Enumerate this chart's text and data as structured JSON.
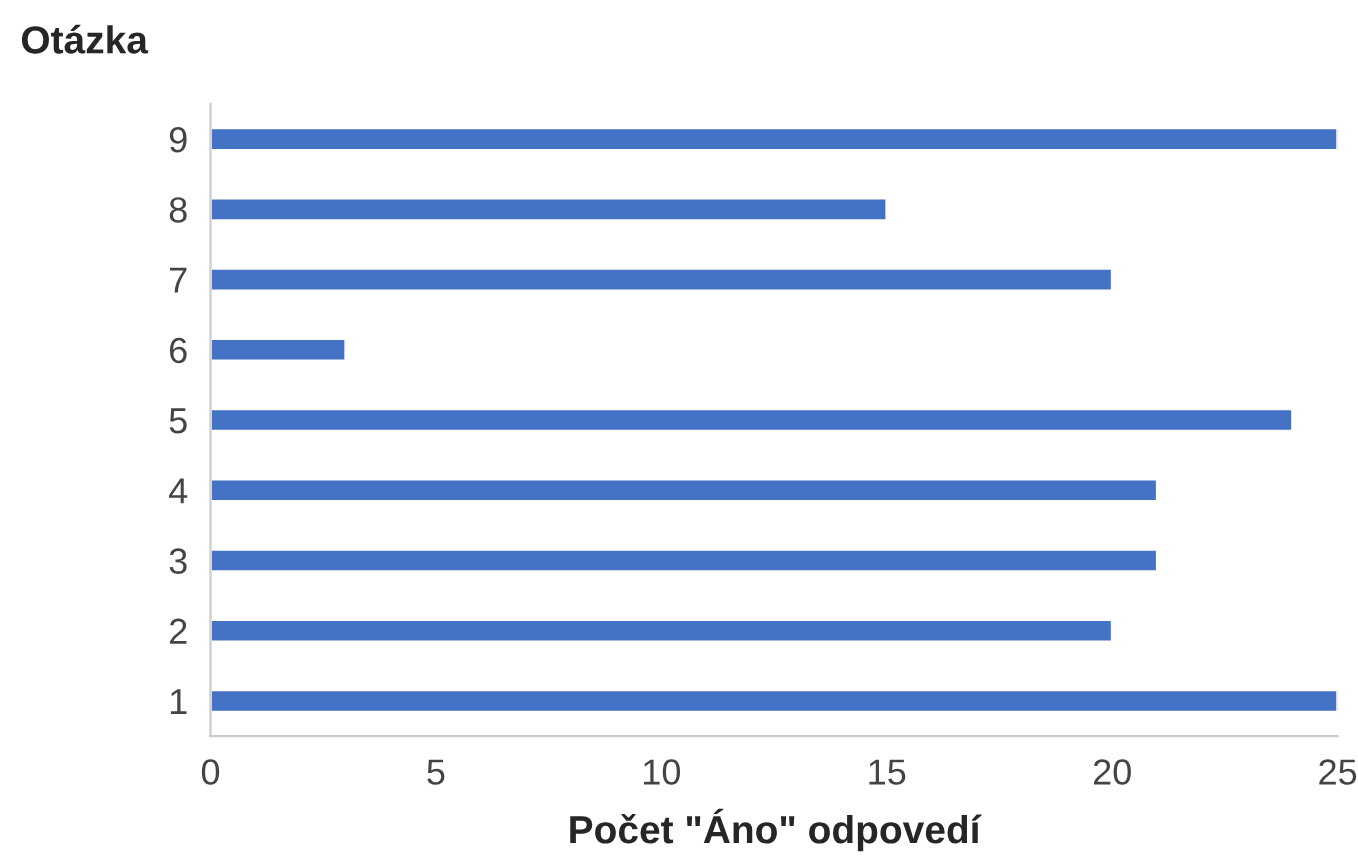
{
  "chart_data": {
    "type": "bar",
    "orientation": "horizontal",
    "ylabel": "Otázka",
    "xlabel": "Počet \"Áno\" odpovedí",
    "categories": [
      "9",
      "8",
      "7",
      "6",
      "5",
      "4",
      "3",
      "2",
      "1"
    ],
    "values": [
      25,
      15,
      20,
      3,
      24,
      21,
      21,
      20,
      25
    ],
    "color": "#4472c4",
    "xlim": [
      0,
      25
    ],
    "xticks": [
      0,
      5,
      10,
      15,
      20,
      25
    ],
    "grid": false
  }
}
